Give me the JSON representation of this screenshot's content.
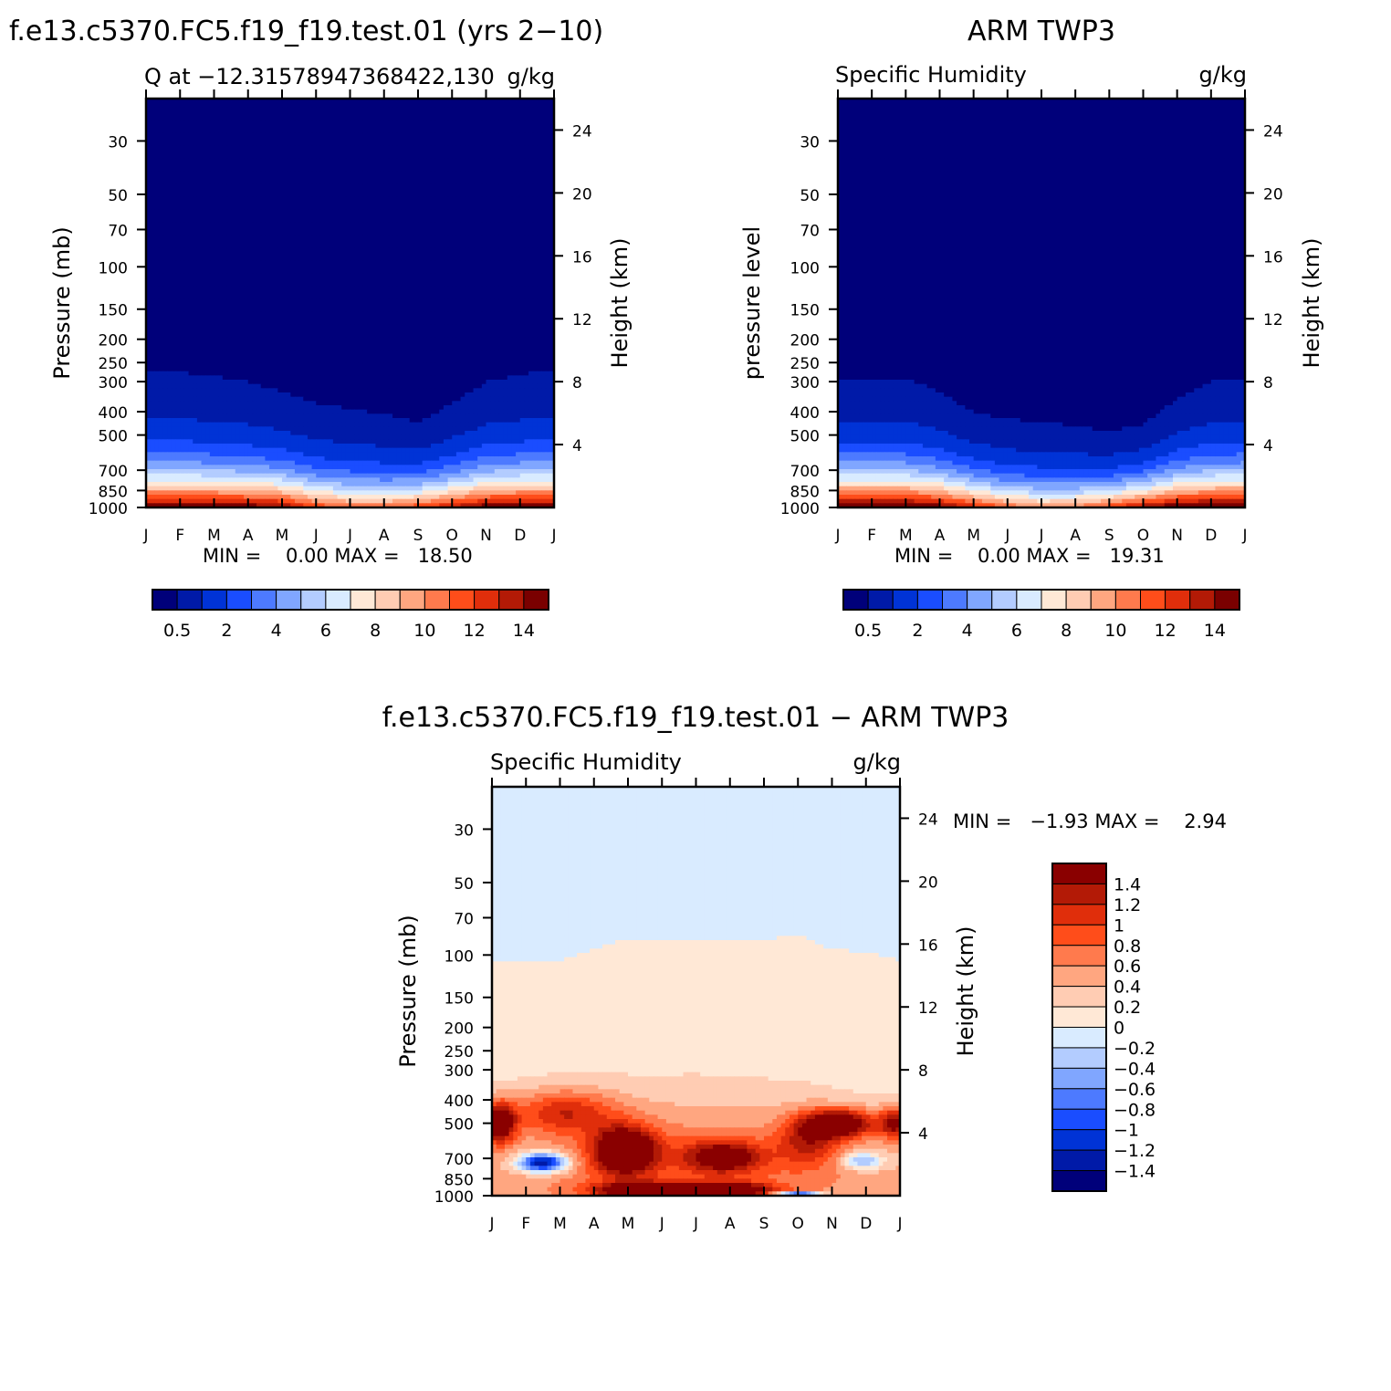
{
  "colors": {
    "q_palette": [
      "#00007a",
      "#001aa8",
      "#0033d6",
      "#1a4dff",
      "#4d7aff",
      "#80a6ff",
      "#b3ccff",
      "#d9ebff",
      "#ffe8d6",
      "#ffccb3",
      "#ffa680",
      "#ff7a4d",
      "#ff4d1a",
      "#e02e0b",
      "#b31a06",
      "#7a0000"
    ],
    "diff_palette": [
      "#00007a",
      "#001aa8",
      "#0033d6",
      "#1a4dff",
      "#4d7aff",
      "#80a6ff",
      "#b3ccff",
      "#d9ebff",
      "#ffe8d6",
      "#ffccb3",
      "#ffa680",
      "#ff7a4d",
      "#ff4d1a",
      "#e02e0b",
      "#b31a06",
      "#8a0000"
    ]
  },
  "chart_data": [
    {
      "type": "heatmap",
      "suptitle": "f.e13.c5370.FC5.f19_f19.test.01 (yrs 2−10)",
      "left_title": "Q at −12.31578947368422,130",
      "right_title": "g/kg",
      "ylabel": "Pressure (mb)",
      "y2label": "Height (km)",
      "stats": "MIN =    0.00 MAX =   18.50",
      "x_ticks": [
        "J",
        "F",
        "M",
        "A",
        "M",
        "J",
        "J",
        "A",
        "S",
        "O",
        "N",
        "D",
        "J"
      ],
      "y_ticks": [
        "30",
        "50",
        "70",
        "100",
        "150",
        "200",
        "250",
        "300",
        "400",
        "500",
        "700",
        "850",
        "1000"
      ],
      "y2_ticks": [
        "24",
        "20",
        "16",
        "12",
        "8",
        "4"
      ],
      "colorbar_labels": [
        "0.5",
        "2",
        "4",
        "6",
        "8",
        "10",
        "12",
        "14"
      ],
      "levels": [
        0.5,
        1,
        2,
        3,
        4,
        5,
        6,
        7,
        8,
        9,
        10,
        11,
        12,
        13,
        14
      ],
      "months": [
        "J",
        "F",
        "M",
        "A",
        "M",
        "J",
        "J",
        "A",
        "S",
        "O",
        "N",
        "D",
        "J"
      ],
      "dry_top_pressure": [
        270,
        275,
        285,
        300,
        330,
        370,
        390,
        410,
        440,
        370,
        300,
        280,
        270
      ],
      "surface_q": [
        15.5,
        15.5,
        15.5,
        15,
        14.5,
        12,
        11,
        11,
        12,
        13.5,
        15,
        15.5,
        15.5
      ]
    },
    {
      "type": "heatmap",
      "suptitle": "ARM TWP3",
      "left_title": "Specific Humidity",
      "right_title": "g/kg",
      "ylabel": "pressure level",
      "y2label": "Height (km)",
      "stats": "MIN =    0.00 MAX =   19.31",
      "x_ticks": [
        "J",
        "F",
        "M",
        "A",
        "M",
        "J",
        "J",
        "A",
        "S",
        "O",
        "N",
        "D",
        "J"
      ],
      "y_ticks": [
        "30",
        "50",
        "70",
        "100",
        "150",
        "200",
        "250",
        "300",
        "400",
        "500",
        "700",
        "850",
        "1000"
      ],
      "y2_ticks": [
        "24",
        "20",
        "16",
        "12",
        "8",
        "4"
      ],
      "colorbar_labels": [
        "0.5",
        "2",
        "4",
        "6",
        "8",
        "10",
        "12",
        "14"
      ],
      "levels": [
        0.5,
        1,
        2,
        3,
        4,
        5,
        6,
        7,
        8,
        9,
        10,
        11,
        12,
        13,
        14
      ],
      "months": [
        "J",
        "F",
        "M",
        "A",
        "M",
        "J",
        "J",
        "A",
        "S",
        "O",
        "N",
        "D",
        "J"
      ],
      "dry_top_pressure": [
        290,
        290,
        290,
        330,
        400,
        430,
        440,
        460,
        480,
        450,
        350,
        300,
        290
      ],
      "surface_q": [
        16,
        16,
        16,
        15,
        13,
        11,
        10,
        10.5,
        12,
        14,
        15.5,
        16,
        16
      ]
    },
    {
      "type": "heatmap",
      "suptitle": "f.e13.c5370.FC5.f19_f19.test.01 − ARM TWP3",
      "left_title": "Specific Humidity",
      "right_title": "g/kg",
      "ylabel": "Pressure (mb)",
      "y2label": "Height (km)",
      "stats": "MIN =   −1.93 MAX =    2.94",
      "x_ticks": [
        "J",
        "F",
        "M",
        "A",
        "M",
        "J",
        "J",
        "A",
        "S",
        "O",
        "N",
        "D",
        "J"
      ],
      "y_ticks": [
        "30",
        "50",
        "70",
        "100",
        "150",
        "200",
        "250",
        "300",
        "400",
        "500",
        "700",
        "850",
        "1000"
      ],
      "y2_ticks": [
        "24",
        "20",
        "16",
        "12",
        "8",
        "4"
      ],
      "colorbar_labels": [
        "1.4",
        "1.2",
        "1",
        "0.8",
        "0.6",
        "0.4",
        "0.2",
        "0",
        "−0.2",
        "−0.4",
        "−0.6",
        "−0.8",
        "−1",
        "−1.2",
        "−1.4"
      ],
      "levels": [
        -1.4,
        -1.2,
        -1,
        -0.8,
        -0.6,
        -0.4,
        -0.2,
        0,
        0.2,
        0.4,
        0.6,
        0.8,
        1,
        1.2,
        1.4
      ],
      "months": [
        "J",
        "F",
        "M",
        "A",
        "M",
        "J",
        "J",
        "A",
        "S",
        "O",
        "N",
        "D",
        "J"
      ],
      "upper_boundary_pressure": [
        105,
        105,
        105,
        95,
        85,
        85,
        85,
        87,
        87,
        82,
        95,
        97,
        105
      ]
    }
  ]
}
